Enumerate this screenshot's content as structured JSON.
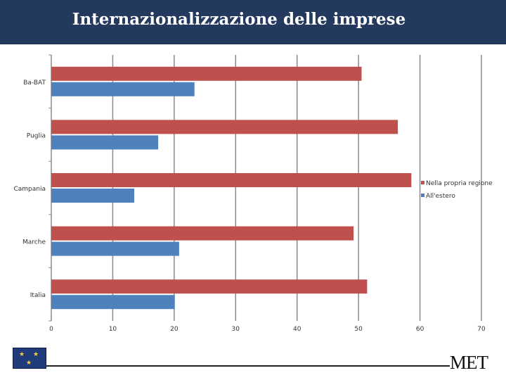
{
  "header": {
    "title": "Internazionalizzazione delle imprese"
  },
  "brand": {
    "name": "MET"
  },
  "chart_data": {
    "type": "bar",
    "orientation": "horizontal",
    "categories": [
      "Ba-BAT",
      "Puglia",
      "Campania",
      "Marche",
      "Italia"
    ],
    "series": [
      {
        "name": "Nella propria regione",
        "color": "#c0504d",
        "values": [
          50.5,
          56.4,
          58.6,
          49.2,
          51.4
        ]
      },
      {
        "name": "All'estero",
        "color": "#4f81bd",
        "values": [
          23.3,
          17.4,
          13.5,
          20.8,
          20.1
        ]
      }
    ],
    "xlim": [
      0,
      70
    ],
    "xticks": [
      0,
      10,
      20,
      30,
      40,
      50,
      60,
      70
    ],
    "grid": true,
    "legend_position": "right",
    "title": "",
    "xlabel": "",
    "ylabel": ""
  }
}
